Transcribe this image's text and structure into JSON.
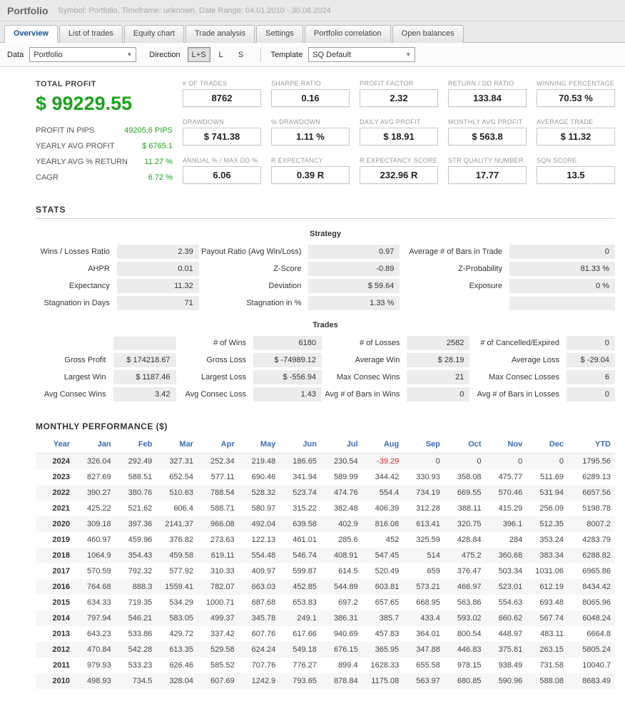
{
  "colors": {
    "profit_green": "#1fa11f",
    "negative_red": "#d32f2f",
    "header_blue": "#3b6cb5"
  },
  "header": {
    "title": "Portfolio",
    "subtitle": "Symbol: Portfolio, Timeframe: unknown, Date Range: 04.01.2010 - 30.08.2024"
  },
  "tabs": [
    {
      "label": "Overview",
      "active": true
    },
    {
      "label": "List of trades",
      "active": false
    },
    {
      "label": "Equity chart",
      "active": false
    },
    {
      "label": "Trade analysis",
      "active": false
    },
    {
      "label": "Settings",
      "active": false
    },
    {
      "label": "Portfolio correlation",
      "active": false
    },
    {
      "label": "Open balances",
      "active": false
    }
  ],
  "toolbar": {
    "data_label": "Data",
    "data_value": "Portfolio",
    "direction_label": "Direction",
    "direction_options": [
      "L+S",
      "L",
      "S"
    ],
    "direction_selected": "L+S",
    "template_label": "Template",
    "template_value": "SQ Default"
  },
  "summary": {
    "total_profit_label": "TOTAL PROFIT",
    "total_profit": "$ 99229.55",
    "rows": [
      {
        "label": "PROFIT IN PIPS",
        "value": "49205.6 PIPS"
      },
      {
        "label": "YEARLY AVG PROFIT",
        "value": "$ 6765.1"
      },
      {
        "label": "YEARLY AVG % RETURN",
        "value": "11.27 %"
      },
      {
        "label": "CAGR",
        "value": "6.72 %"
      }
    ],
    "metrics": [
      {
        "label": "# OF TRADES",
        "value": "8762"
      },
      {
        "label": "SHARPE RATIO",
        "value": "0.16"
      },
      {
        "label": "PROFIT FACTOR",
        "value": "2.32"
      },
      {
        "label": "RETURN / DD RATIO",
        "value": "133.84"
      },
      {
        "label": "WINNING PERCENTAGE",
        "value": "70.53 %"
      },
      {
        "label": "DRAWDOWN",
        "value": "$ 741.38"
      },
      {
        "label": "% DRAWDOWN",
        "value": "1.11 %"
      },
      {
        "label": "DAILY AVG PROFIT",
        "value": "$ 18.91"
      },
      {
        "label": "MONTHLY AVG PROFIT",
        "value": "$ 563.8"
      },
      {
        "label": "AVERAGE TRADE",
        "value": "$ 11.32"
      },
      {
        "label": "ANNUAL % / MAX DD %",
        "value": "6.06"
      },
      {
        "label": "R EXPECTANCY",
        "value": "0.39 R"
      },
      {
        "label": "R EXPECTANCY SCORE",
        "value": "232.96 R"
      },
      {
        "label": "STR QUALITY NUMBER",
        "value": "17.77"
      },
      {
        "label": "SQN SCORE",
        "value": "13.5"
      }
    ]
  },
  "stats": {
    "heading": "STATS",
    "strategy": {
      "title": "Strategy",
      "rows": [
        [
          {
            "label": "Wins / Losses Ratio",
            "value": "2.39"
          },
          {
            "label": "Payout Ratio (Avg Win/Loss)",
            "value": "0.97"
          },
          {
            "label": "Average # of Bars in Trade",
            "value": "0"
          }
        ],
        [
          {
            "label": "AHPR",
            "value": "0.01"
          },
          {
            "label": "Z-Score",
            "value": "-0.89"
          },
          {
            "label": "Z-Probability",
            "value": "81.33 %"
          }
        ],
        [
          {
            "label": "Expectancy",
            "value": "11.32"
          },
          {
            "label": "Deviation",
            "value": "$ 59.64"
          },
          {
            "label": "Exposure",
            "value": "0 %"
          }
        ],
        [
          {
            "label": "Stagnation in Days",
            "value": "71"
          },
          {
            "label": "Stagnation in %",
            "value": "1.33 %"
          },
          {
            "label": "",
            "value": ""
          }
        ]
      ]
    },
    "trades": {
      "title": "Trades",
      "rows": [
        [
          {
            "label": "",
            "value": ""
          },
          {
            "label": "# of Wins",
            "value": "6180"
          },
          {
            "label": "# of Losses",
            "value": "2582"
          },
          {
            "label": "# of Cancelled/Expired",
            "value": "0"
          }
        ],
        [
          {
            "label": "Gross Profit",
            "value": "$ 174218.67"
          },
          {
            "label": "Gross Loss",
            "value": "$ -74989.12"
          },
          {
            "label": "Average Win",
            "value": "$ 28.19"
          },
          {
            "label": "Average Loss",
            "value": "$ -29.04"
          }
        ],
        [
          {
            "label": "Largest Win",
            "value": "$ 1187.46"
          },
          {
            "label": "Largest Loss",
            "value": "$ -556.94"
          },
          {
            "label": "Max Consec Wins",
            "value": "21"
          },
          {
            "label": "Max Consec Losses",
            "value": "6"
          }
        ],
        [
          {
            "label": "Avg Consec Wins",
            "value": "3.42"
          },
          {
            "label": "Avg Consec Loss",
            "value": "1.43"
          },
          {
            "label": "Avg # of Bars in Wins",
            "value": "0"
          },
          {
            "label": "Avg # of Bars in Losses",
            "value": "0"
          }
        ]
      ]
    }
  },
  "monthly": {
    "heading": "MONTHLY PERFORMANCE ($)",
    "columns": [
      "Year",
      "Jan",
      "Feb",
      "Mar",
      "Apr",
      "May",
      "Jun",
      "Jul",
      "Aug",
      "Sep",
      "Oct",
      "Nov",
      "Dec",
      "YTD"
    ],
    "rows": [
      {
        "year": "2024",
        "values": [
          "326.04",
          "292.49",
          "327.31",
          "252.34",
          "219.48",
          "186.65",
          "230.54",
          "-39.29",
          "0",
          "0",
          "0",
          "0",
          "1795.56"
        ]
      },
      {
        "year": "2023",
        "values": [
          "827.69",
          "588.51",
          "652.54",
          "577.11",
          "690.46",
          "341.94",
          "589.99",
          "344.42",
          "330.93",
          "358.08",
          "475.77",
          "511.69",
          "6289.13"
        ]
      },
      {
        "year": "2022",
        "values": [
          "390.27",
          "380.76",
          "510.63",
          "788.54",
          "528.32",
          "523.74",
          "474.76",
          "554.4",
          "734.19",
          "669.55",
          "570.46",
          "531.94",
          "6657.56"
        ]
      },
      {
        "year": "2021",
        "values": [
          "425.22",
          "521.62",
          "606.4",
          "588.71",
          "580.97",
          "315.22",
          "382.48",
          "406.39",
          "312.28",
          "388.11",
          "415.29",
          "256.09",
          "5198.78"
        ]
      },
      {
        "year": "2020",
        "values": [
          "309.18",
          "397.36",
          "2141.37",
          "966.08",
          "492.04",
          "639.58",
          "402.9",
          "816.08",
          "613.41",
          "320.75",
          "396.1",
          "512.35",
          "8007.2"
        ]
      },
      {
        "year": "2019",
        "values": [
          "460.97",
          "459.96",
          "376.82",
          "273.63",
          "122.13",
          "461.01",
          "285.6",
          "452",
          "325.59",
          "428.84",
          "284",
          "353.24",
          "4283.79"
        ]
      },
      {
        "year": "2018",
        "values": [
          "1064.9",
          "354.43",
          "459.58",
          "619.11",
          "554.48",
          "546.74",
          "408.91",
          "547.45",
          "514",
          "475.2",
          "360.68",
          "383.34",
          "6288.82"
        ]
      },
      {
        "year": "2017",
        "values": [
          "570.59",
          "792.32",
          "577.92",
          "310.33",
          "409.97",
          "599.87",
          "614.5",
          "520.49",
          "659",
          "376.47",
          "503.34",
          "1031.06",
          "6965.86"
        ]
      },
      {
        "year": "2016",
        "values": [
          "764.68",
          "888.3",
          "1559.41",
          "782.07",
          "663.03",
          "452.85",
          "544.89",
          "603.81",
          "573.21",
          "466.97",
          "523.01",
          "612.19",
          "8434.42"
        ]
      },
      {
        "year": "2015",
        "values": [
          "634.33",
          "719.35",
          "534.29",
          "1000.71",
          "687.68",
          "653.83",
          "697.2",
          "657.65",
          "668.95",
          "563.86",
          "554.63",
          "693.48",
          "8065.96"
        ]
      },
      {
        "year": "2014",
        "values": [
          "797.94",
          "546.21",
          "583.05",
          "499.37",
          "345.78",
          "249.1",
          "386.31",
          "385.7",
          "433.4",
          "593.02",
          "660.62",
          "567.74",
          "6048.24"
        ]
      },
      {
        "year": "2013",
        "values": [
          "643.23",
          "533.86",
          "429.72",
          "337.42",
          "607.76",
          "617.66",
          "940.69",
          "457.83",
          "364.01",
          "800.54",
          "448.97",
          "483.11",
          "6664.8"
        ]
      },
      {
        "year": "2012",
        "values": [
          "470.84",
          "542.28",
          "613.35",
          "529.58",
          "624.24",
          "549.18",
          "676.15",
          "365.95",
          "347.88",
          "446.83",
          "375.81",
          "263.15",
          "5805.24"
        ]
      },
      {
        "year": "2011",
        "values": [
          "979.93",
          "533.23",
          "626.46",
          "585.52",
          "707.76",
          "776.27",
          "899.4",
          "1628.33",
          "655.58",
          "978.15",
          "938.49",
          "731.58",
          "10040.7"
        ]
      },
      {
        "year": "2010",
        "values": [
          "498.93",
          "734.5",
          "328.04",
          "607.69",
          "1242.9",
          "793.65",
          "878.84",
          "1175.08",
          "563.97",
          "680.85",
          "590.96",
          "588.08",
          "8683.49"
        ]
      }
    ]
  }
}
